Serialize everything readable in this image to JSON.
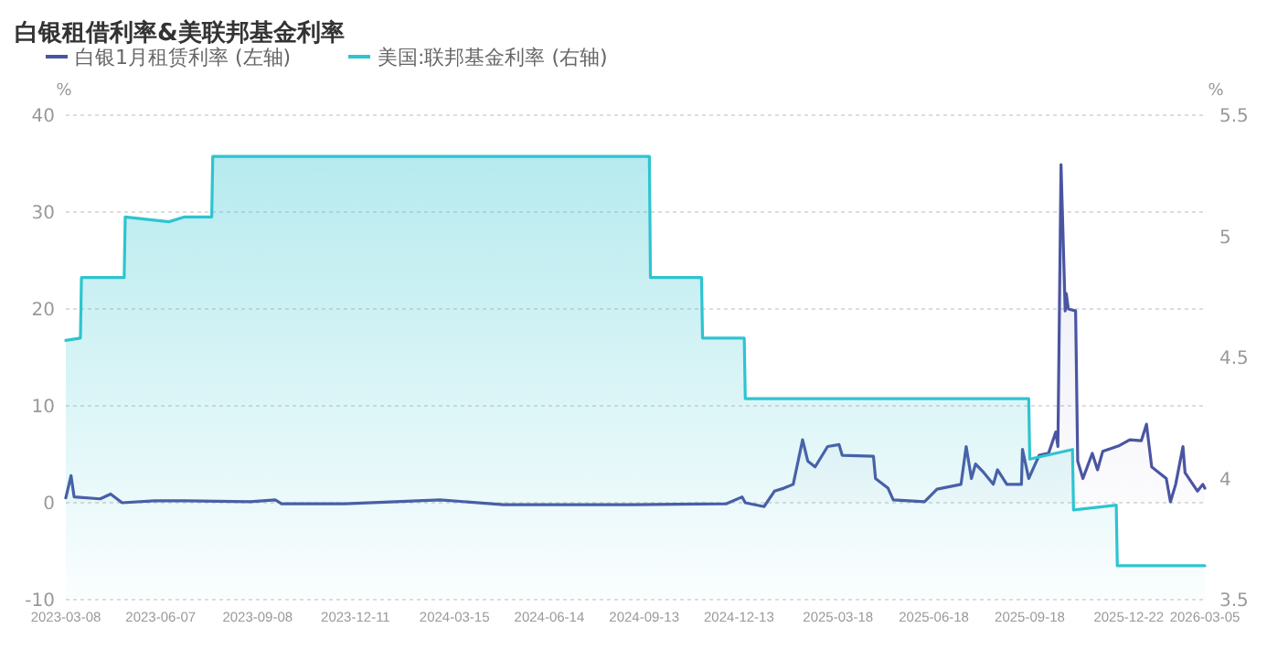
{
  "chart_data": {
    "type": "area",
    "title": "白银租借利率&美联邦基金利率",
    "ylabel": "%",
    "y2label": "%",
    "ylim": [
      -10,
      40
    ],
    "yticks": [
      -10,
      0,
      10,
      20,
      30,
      40
    ],
    "y2lim": [
      3.5,
      5.5
    ],
    "y2ticks": [
      3.5,
      4,
      4.5,
      5,
      5.5
    ],
    "xlim": [
      "2023-03-08",
      "2026-03-05"
    ],
    "xticks": [
      "2023-03-08",
      "2023-06-07",
      "2023-09-08",
      "2023-12-11",
      "2024-03-15",
      "2024-06-14",
      "2024-09-13",
      "2024-12-13",
      "2025-03-18",
      "2025-06-18",
      "2025-09-18",
      "2025-12-22",
      "2026-03-05"
    ],
    "grid": "y",
    "legend": "top left",
    "marker": "none",
    "line_style": "solid",
    "series": [
      {
        "name": "白银1月租赁利率 (左轴)",
        "color": "#4a55a2",
        "axis": "y",
        "x": [
          "2023-03-08",
          "2023-03-13",
          "2023-03-16",
          "2023-04-10",
          "2023-04-20",
          "2023-05-01",
          "2023-06-01",
          "2023-07-01",
          "2023-09-01",
          "2023-09-25",
          "2023-10-01",
          "2023-12-01",
          "2024-03-01",
          "2024-05-01",
          "2024-09-01",
          "2024-12-01",
          "2024-12-16",
          "2024-12-19",
          "2025-01-06",
          "2025-01-16",
          "2025-01-25",
          "2025-02-03",
          "2025-02-12",
          "2025-02-17",
          "2025-02-24",
          "2025-03-08",
          "2025-03-19",
          "2025-03-22",
          "2025-04-21",
          "2025-04-23",
          "2025-05-05",
          "2025-05-10",
          "2025-06-09",
          "2025-06-21",
          "2025-07-14",
          "2025-07-19",
          "2025-07-24",
          "2025-07-28",
          "2025-08-05",
          "2025-08-14",
          "2025-08-18",
          "2025-08-27",
          "2025-09-10",
          "2025-09-11",
          "2025-09-17",
          "2025-09-27",
          "2025-10-06",
          "2025-10-13",
          "2025-10-15",
          "2025-10-18",
          "2025-10-22",
          "2025-10-23",
          "2025-10-25",
          "2025-11-01",
          "2025-11-03",
          "2025-11-08",
          "2025-11-17",
          "2025-11-22",
          "2025-11-27",
          "2025-12-13",
          "2025-12-23",
          "2026-01-03",
          "2026-01-08",
          "2026-01-13",
          "2026-01-27",
          "2026-01-31",
          "2026-02-05",
          "2026-02-12",
          "2026-02-14",
          "2026-02-26",
          "2026-03-03",
          "2026-03-05"
        ],
        "values": [
          0.5,
          2.8,
          0.6,
          0.4,
          0.9,
          0.0,
          0.2,
          0.2,
          0.1,
          0.3,
          -0.1,
          -0.1,
          0.3,
          -0.2,
          -0.2,
          -0.1,
          0.6,
          0,
          -0.4,
          1.2,
          1.5,
          1.9,
          6.5,
          4.3,
          3.7,
          5.8,
          6.0,
          4.9,
          4.8,
          2.5,
          1.5,
          0.3,
          0.1,
          1.4,
          1.9,
          5.8,
          2.5,
          4.0,
          3.1,
          1.9,
          3.4,
          1.9,
          1.9,
          5.5,
          2.5,
          4.9,
          5.1,
          7.3,
          5.8,
          34.9,
          19.8,
          21.6,
          20,
          19.8,
          4.3,
          2.5,
          5.1,
          3.4,
          5.3,
          5.9,
          6.5,
          6.4,
          8.1,
          3.7,
          2.5,
          0.1,
          1.9,
          5.8,
          3.1,
          1.2,
          1.9,
          1.5
        ]
      },
      {
        "name": "美国:联邦基金利率 (右轴)",
        "color": "#2ec4d0",
        "axis": "y2",
        "x": [
          "2023-03-08",
          "2023-03-22",
          "2023-03-23",
          "2023-05-03",
          "2023-05-04",
          "2023-06-15",
          "2023-06-30",
          "2023-07-26",
          "2023-07-27",
          "2024-09-18",
          "2024-09-19",
          "2024-11-07",
          "2024-11-08",
          "2024-12-18",
          "2024-12-19",
          "2025-09-17",
          "2025-09-18",
          "2025-10-29",
          "2025-10-30",
          "2025-12-10",
          "2025-12-11",
          "2026-03-05"
        ],
        "values": [
          4.57,
          4.58,
          4.83,
          4.83,
          5.08,
          5.06,
          5.08,
          5.08,
          5.33,
          5.33,
          4.83,
          4.83,
          4.58,
          4.58,
          4.33,
          4.33,
          4.08,
          4.12,
          3.87,
          3.89,
          3.64,
          3.64
        ]
      }
    ]
  }
}
